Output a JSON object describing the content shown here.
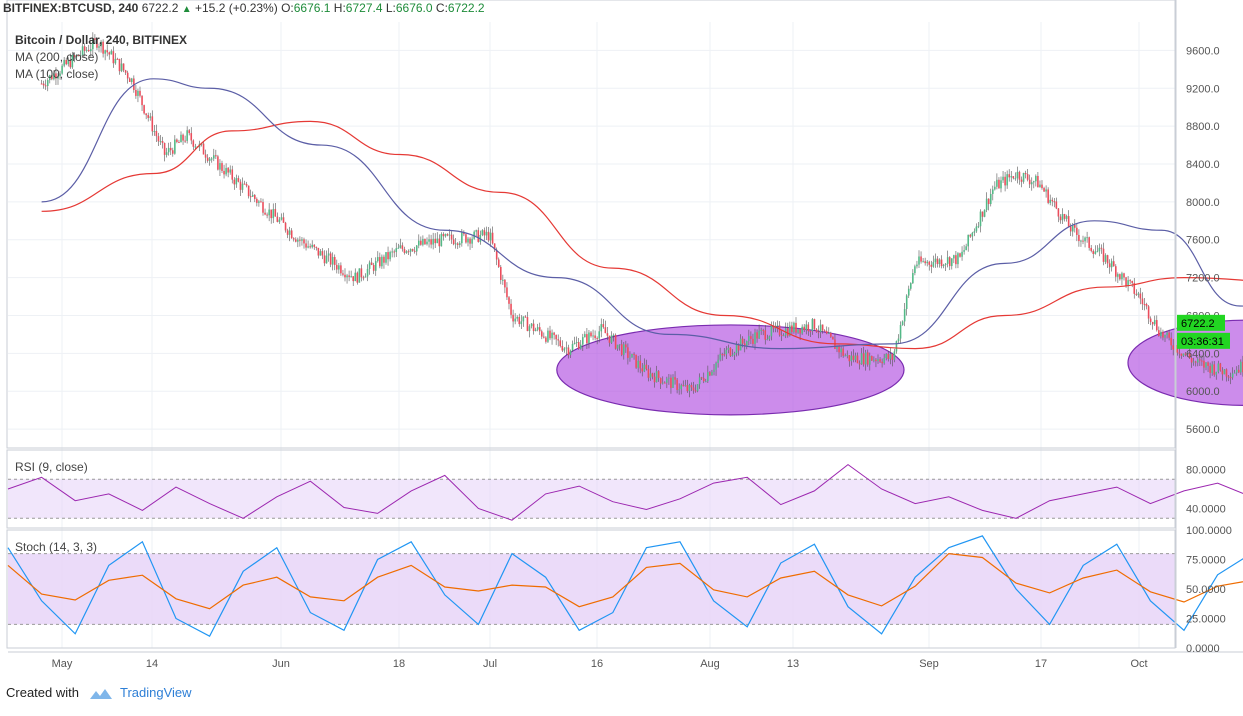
{
  "header": {
    "symbol": "BITFINEX:BTCUSD, 240",
    "last": "6722.2",
    "change": "+15.2 (+0.23%)",
    "o_label": "O:",
    "o": "6676.1",
    "h_label": "H:",
    "h": "6727.4",
    "l_label": "L:",
    "l": "6676.0",
    "c_label": "C:",
    "c": "6722.2"
  },
  "legend": {
    "title": "Bitcoin / Dollar, 240, BITFINEX",
    "ma1": "MA (200, close)",
    "ma2": "MA (100, close)"
  },
  "rsi_label": "RSI (9, close)",
  "stoch_label": "Stoch (14, 3, 3)",
  "price_tag": "6722.2",
  "timer_tag": "03:36:31",
  "footer": {
    "created": "Created with",
    "brand": "TradingView"
  },
  "colors": {
    "up": "#53b987",
    "down": "#eb4d5c",
    "ma200": "#e53935",
    "ma100": "#5b5ea6",
    "ellipse_fill": "#b04fe0",
    "ellipse_stroke": "#7a2cb0",
    "rsi_line": "#9c27b0",
    "stoch_k": "#2196f3",
    "stoch_d": "#ef6c00",
    "band": "#e6d2f7",
    "tag": "#22d622"
  },
  "chart_data": [
    {
      "type": "candlestick",
      "title": "Bitcoin / Dollar, 240, BITFINEX",
      "ylim": [
        5400,
        9900
      ],
      "y_ticks": [
        "9600.0",
        "9200.0",
        "8800.0",
        "8400.0",
        "8000.0",
        "7600.0",
        "7200.0",
        "6800.0",
        "6400.0",
        "6000.0",
        "5600.0"
      ],
      "x_ticks": [
        "May",
        "14",
        "Jun",
        "18",
        "Jul",
        "16",
        "Aug",
        "13",
        "Sep",
        "17",
        "Oct"
      ],
      "price_path": [
        [
          "2018-04-30",
          9250
        ],
        [
          "2018-05-05",
          9700
        ],
        [
          "2018-05-08",
          9300
        ],
        [
          "2018-05-11",
          8500
        ],
        [
          "2018-05-13",
          8700
        ],
        [
          "2018-05-18",
          8150
        ],
        [
          "2018-05-23",
          7600
        ],
        [
          "2018-05-28",
          7200
        ],
        [
          "2018-06-01",
          7500
        ],
        [
          "2018-06-05",
          7600
        ],
        [
          "2018-06-09",
          7650
        ],
        [
          "2018-06-11",
          6800
        ],
        [
          "2018-06-16",
          6450
        ],
        [
          "2018-06-19",
          6650
        ],
        [
          "2018-06-23",
          6200
        ],
        [
          "2018-06-27",
          6000
        ],
        [
          "2018-06-30",
          6400
        ],
        [
          "2018-07-03",
          6600
        ],
        [
          "2018-07-08",
          6700
        ],
        [
          "2018-07-11",
          6350
        ],
        [
          "2018-07-15",
          6350
        ],
        [
          "2018-07-17",
          7350
        ],
        [
          "2018-07-21",
          7400
        ],
        [
          "2018-07-24",
          8150
        ],
        [
          "2018-07-26",
          8300
        ],
        [
          "2018-07-28",
          8200
        ],
        [
          "2018-07-31",
          7700
        ],
        [
          "2018-08-03",
          7400
        ],
        [
          "2018-08-06",
          7000
        ],
        [
          "2018-08-08",
          6600
        ],
        [
          "2018-08-11",
          6300
        ],
        [
          "2018-08-14",
          6200
        ],
        [
          "2018-08-18",
          6400
        ],
        [
          "2018-08-21",
          6500
        ],
        [
          "2018-08-23",
          6580
        ],
        [
          "2018-08-26",
          6650
        ],
        [
          "2018-08-28",
          6722.2
        ]
      ],
      "ma200_path": [
        [
          "2018-04-30",
          7900
        ],
        [
          "2018-05-10",
          8300
        ],
        [
          "2018-05-17",
          8750
        ],
        [
          "2018-05-24",
          8850
        ],
        [
          "2018-06-01",
          8500
        ],
        [
          "2018-06-10",
          8100
        ],
        [
          "2018-06-20",
          7300
        ],
        [
          "2018-06-30",
          6800
        ],
        [
          "2018-07-10",
          6500
        ],
        [
          "2018-07-17",
          6450
        ],
        [
          "2018-07-25",
          6800
        ],
        [
          "2018-08-03",
          7100
        ],
        [
          "2018-08-10",
          7200
        ],
        [
          "2018-08-20",
          7150
        ],
        [
          "2018-08-28",
          6950
        ]
      ],
      "ma100_path": [
        [
          "2018-04-30",
          8000
        ],
        [
          "2018-05-10",
          9300
        ],
        [
          "2018-05-15",
          9200
        ],
        [
          "2018-05-25",
          8600
        ],
        [
          "2018-06-05",
          7700
        ],
        [
          "2018-06-15",
          7200
        ],
        [
          "2018-06-25",
          6600
        ],
        [
          "2018-07-05",
          6450
        ],
        [
          "2018-07-15",
          6500
        ],
        [
          "2018-07-25",
          7350
        ],
        [
          "2018-08-02",
          7800
        ],
        [
          "2018-08-08",
          7700
        ],
        [
          "2018-08-15",
          6900
        ],
        [
          "2018-08-22",
          6500
        ],
        [
          "2018-08-28",
          6550
        ]
      ],
      "ellipses": [
        {
          "from": "2018-06-15",
          "to": "2018-07-16",
          "low": 5750,
          "high": 6700
        },
        {
          "from": "2018-08-05",
          "to": "2018-08-26",
          "low": 5850,
          "high": 6750
        }
      ]
    },
    {
      "type": "line",
      "title": "RSI (9, close)",
      "ylim": [
        20,
        100
      ],
      "y_ticks": [
        "80.0000",
        "40.0000"
      ],
      "band": [
        30,
        70
      ],
      "series": [
        {
          "values": [
            60,
            72,
            48,
            55,
            38,
            62,
            45,
            30,
            52,
            68,
            41,
            35,
            58,
            74,
            40,
            28,
            55,
            63,
            47,
            39,
            50,
            66,
            72,
            44,
            58,
            85,
            60,
            45,
            52,
            38,
            30,
            48,
            55,
            62,
            45,
            58,
            66,
            52,
            40,
            60,
            68,
            57
          ]
        }
      ]
    },
    {
      "type": "line",
      "title": "Stoch (14, 3, 3)",
      "ylim": [
        0,
        100
      ],
      "y_ticks": [
        "100.0000",
        "75.0000",
        "50.0000",
        "25.0000",
        "0.0000"
      ],
      "band": [
        20,
        80
      ],
      "series": [
        {
          "values": [
            85,
            40,
            12,
            70,
            90,
            25,
            10,
            65,
            85,
            30,
            15,
            75,
            90,
            45,
            20,
            80,
            60,
            15,
            30,
            85,
            90,
            40,
            18,
            72,
            88,
            35,
            12,
            60,
            85,
            95,
            50,
            20,
            70,
            88,
            40,
            15,
            62,
            80,
            30,
            20,
            85,
            70
          ]
        }
      ]
    }
  ]
}
